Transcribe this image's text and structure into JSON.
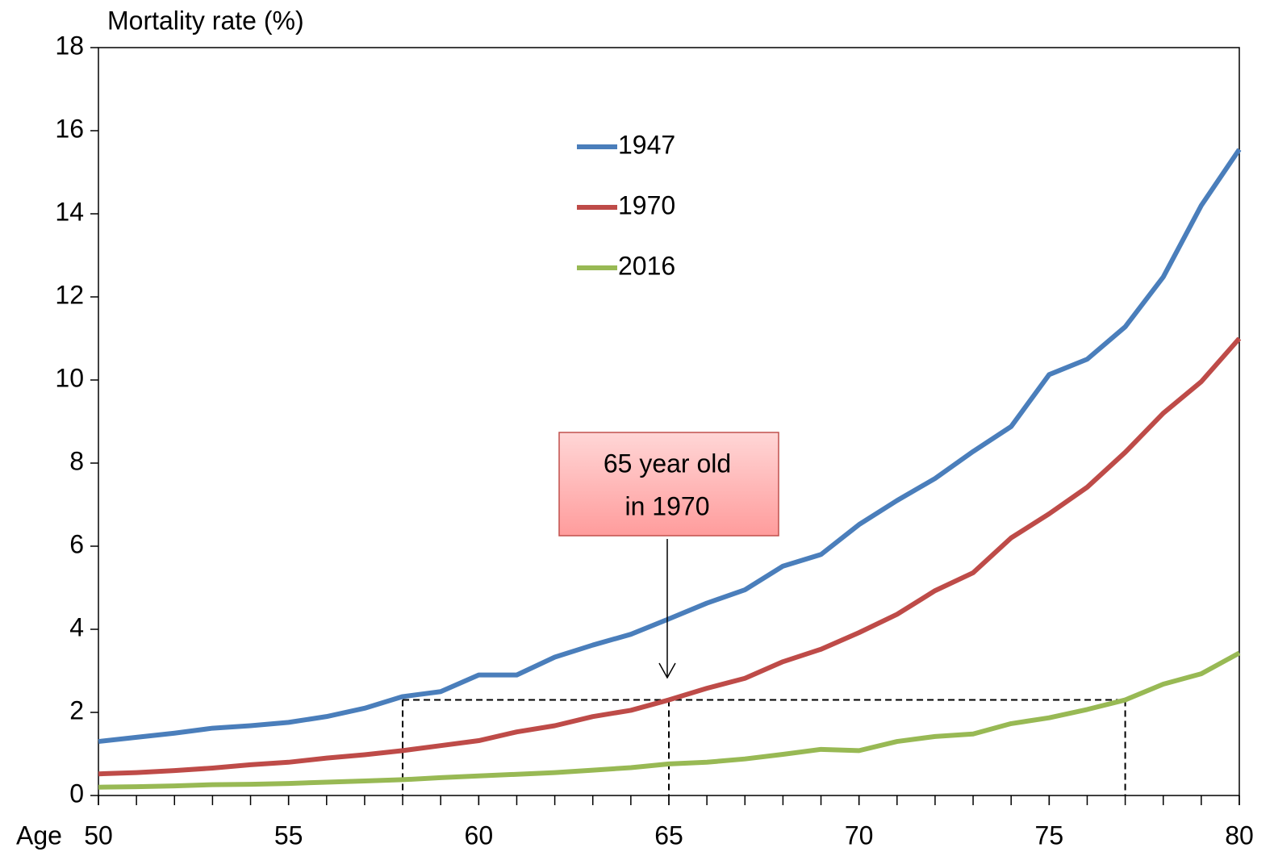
{
  "chart_data": {
    "type": "line",
    "y_label": "Mortality rate (%)",
    "x_label": "Age",
    "x": [
      50,
      51,
      52,
      53,
      54,
      55,
      56,
      57,
      58,
      59,
      60,
      61,
      62,
      63,
      64,
      65,
      66,
      67,
      68,
      69,
      70,
      71,
      72,
      73,
      74,
      75,
      76,
      77,
      78,
      79,
      80
    ],
    "series": [
      {
        "name": "1947",
        "color": "#4a7ebb",
        "values": [
          1.3,
          1.4,
          1.5,
          1.62,
          1.68,
          1.76,
          1.9,
          2.1,
          2.38,
          2.5,
          2.9,
          2.9,
          3.33,
          3.62,
          3.88,
          4.25,
          4.63,
          4.95,
          5.52,
          5.8,
          6.52,
          7.1,
          7.63,
          8.28,
          8.88,
          10.13,
          10.5,
          11.28,
          12.48,
          14.2,
          15.55
        ]
      },
      {
        "name": "1970",
        "color": "#be4b48",
        "values": [
          0.52,
          0.55,
          0.6,
          0.66,
          0.74,
          0.8,
          0.9,
          0.98,
          1.08,
          1.2,
          1.32,
          1.53,
          1.68,
          1.9,
          2.05,
          2.3,
          2.58,
          2.82,
          3.22,
          3.52,
          3.92,
          4.36,
          4.93,
          5.36,
          6.2,
          6.78,
          7.42,
          8.26,
          9.2,
          9.96,
          11.0
        ]
      },
      {
        "name": "2016",
        "color": "#98b954",
        "values": [
          0.2,
          0.21,
          0.23,
          0.26,
          0.27,
          0.29,
          0.32,
          0.35,
          0.38,
          0.43,
          0.47,
          0.51,
          0.55,
          0.61,
          0.67,
          0.76,
          0.8,
          0.88,
          0.99,
          1.11,
          1.08,
          1.3,
          1.42,
          1.48,
          1.73,
          1.87,
          2.07,
          2.3,
          2.68,
          2.93,
          3.43
        ]
      }
    ],
    "xlim": [
      50,
      80
    ],
    "xticks": [
      50,
      55,
      60,
      65,
      70,
      75,
      80
    ],
    "xticks_minor": [
      50,
      51,
      52,
      53,
      54,
      55,
      56,
      57,
      58,
      59,
      60,
      61,
      62,
      63,
      64,
      65,
      66,
      67,
      68,
      69,
      70,
      71,
      72,
      73,
      74,
      75,
      76,
      77,
      78,
      79,
      80
    ],
    "ylim": [
      0,
      18
    ],
    "yticks": [
      0,
      2,
      4,
      6,
      8,
      10,
      12,
      14,
      16,
      18
    ],
    "grid": false,
    "legend": "upper center",
    "annotation": {
      "lines": [
        "65 year old",
        "in 1970"
      ],
      "x": 65
    },
    "reference_lines": {
      "x": [
        58,
        65,
        77
      ],
      "y": 2.3
    }
  }
}
